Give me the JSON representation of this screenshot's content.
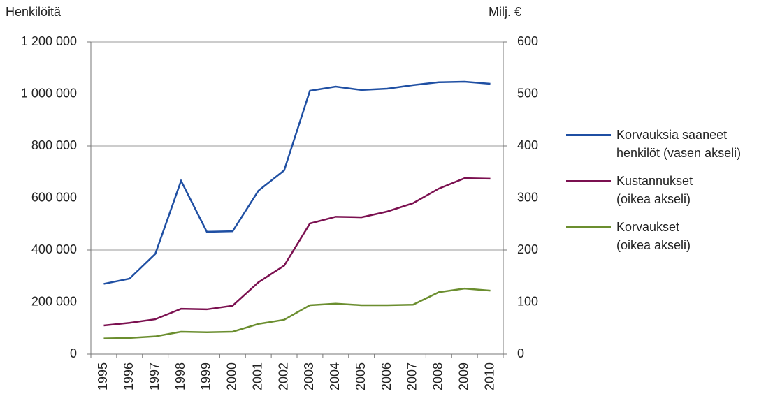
{
  "chart_data": {
    "type": "line",
    "y_axis_label": "Henkilöitä",
    "y2_axis_label": "Milj. €",
    "categories": [
      "1995",
      "1996",
      "1997",
      "1998",
      "1999",
      "2000",
      "2001",
      "2002",
      "2003",
      "2004",
      "2005",
      "2006",
      "2007",
      "2008",
      "2009",
      "2010"
    ],
    "series": [
      {
        "name": "Korvauksia saaneet\nhenkilöt (vasen akseli)",
        "color": "#1f4fa3",
        "values": [
          270000,
          290000,
          385000,
          666000,
          470000,
          472000,
          628000,
          706000,
          1012000,
          1028000,
          1015000,
          1020000,
          1034000,
          1045000,
          1047000,
          1039000
        ]
      },
      {
        "name": "Kustannukset\n(oikea akseli)",
        "color": "#7b1050",
        "axis": "y2",
        "values": [
          55,
          60,
          67,
          87,
          86,
          93,
          138,
          170,
          251,
          264,
          263,
          274,
          290,
          318,
          338,
          337
        ]
      },
      {
        "name": "Korvaukset\n(oikea akseli)",
        "color": "#6b8e2f",
        "axis": "y2",
        "values": [
          30,
          31,
          34,
          43,
          42,
          43,
          58,
          66,
          94,
          97,
          94,
          94,
          95,
          119,
          126,
          122
        ]
      }
    ],
    "ylim": [
      0,
      1200000
    ],
    "yticks": [
      0,
      {
        "value": 200000,
        "label": "200 000"
      },
      {
        "value": 400000,
        "label": "400 000"
      },
      {
        "value": 600000,
        "label": "600 000"
      },
      {
        "value": 800000,
        "label": "800 000"
      },
      {
        "value": 1000000,
        "label": "1 000 000"
      },
      {
        "value": 1200000,
        "label": "1 200 000"
      }
    ],
    "y2lim": [
      0,
      600
    ],
    "y2ticks": [
      0,
      100,
      200,
      300,
      400,
      500,
      600
    ],
    "grid": true
  }
}
